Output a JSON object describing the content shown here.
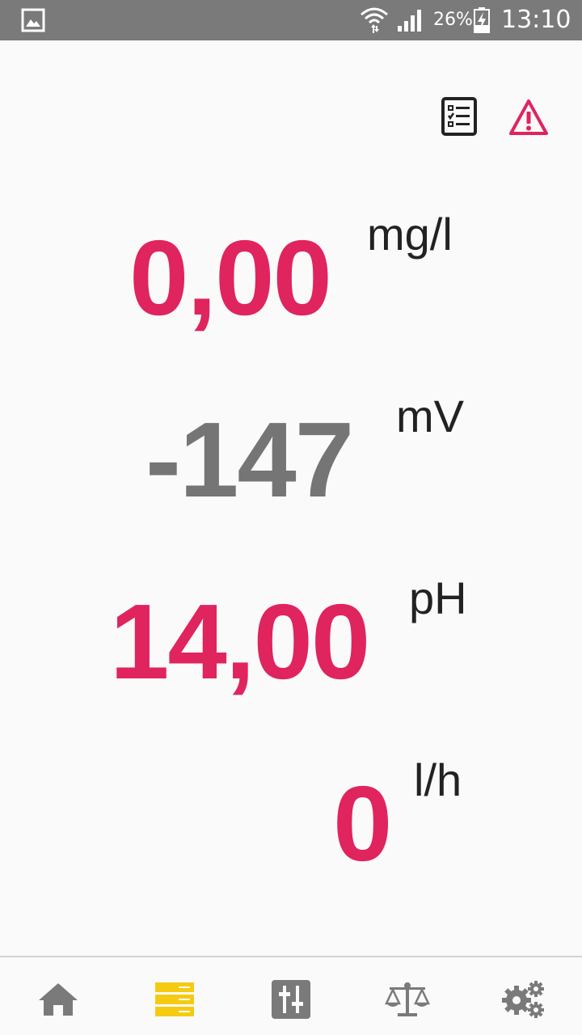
{
  "status_bar": {
    "battery_percent": "26%",
    "time": "13:10"
  },
  "top_actions": {
    "log_icon": "checklist-icon",
    "alarm_icon": "warning-icon"
  },
  "readings": [
    {
      "value": "0,00",
      "unit": "mg/l",
      "color": "#e0245e"
    },
    {
      "value": "-147",
      "unit": "mV",
      "color": "#757575"
    },
    {
      "value": "14,00",
      "unit": "pH",
      "color": "#e0245e"
    },
    {
      "value": "0",
      "unit": "l/h",
      "color": "#e0245e"
    }
  ],
  "bottom_nav": {
    "items": [
      {
        "icon": "home-icon",
        "active": false
      },
      {
        "icon": "list-icon",
        "active": true
      },
      {
        "icon": "sliders-icon",
        "active": false
      },
      {
        "icon": "scale-icon",
        "active": false
      },
      {
        "icon": "gears-icon",
        "active": false
      }
    ],
    "active_color": "#f5cb12",
    "inactive_color": "#7a7a7a"
  }
}
